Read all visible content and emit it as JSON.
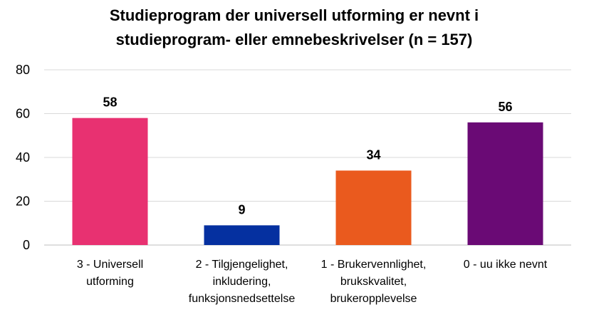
{
  "chart_data": {
    "type": "bar",
    "title_lines": [
      "Studieprogram der universell utforming er nevnt i",
      "studieprogram- eller emnebeskrivelser (n = 157)"
    ],
    "xlabel": "",
    "ylabel": "",
    "ylim": [
      0,
      80
    ],
    "yticks": [
      0,
      20,
      40,
      60,
      80
    ],
    "grid": true,
    "legend": "none",
    "categories": [
      [
        "3 - Universell",
        "utforming"
      ],
      [
        "2 - Tilgjengelighet,",
        "inkludering,",
        "funksjonsnedsettelse"
      ],
      [
        "1 - Brukervennlighet,",
        "brukskvalitet,",
        "brukeropplevelse"
      ],
      [
        "0 - uu ikke nevnt"
      ]
    ],
    "values": [
      58,
      9,
      34,
      56
    ],
    "colors": [
      "#e83171",
      "#0530a0",
      "#ea5a1e",
      "#6a0a75"
    ]
  }
}
